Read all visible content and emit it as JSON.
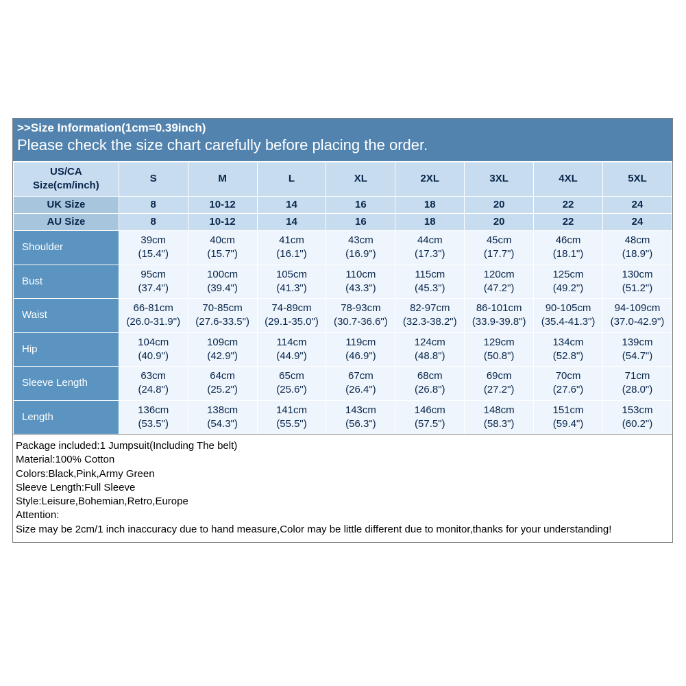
{
  "header": {
    "line1": ">>Size Information(1cm=0.39inch)",
    "line2": "Please check the size chart carefully before placing the order."
  },
  "columns": {
    "first_header_top": "US/CA",
    "first_header_bottom": "Size(cm/inch)",
    "sizes": [
      "S",
      "M",
      "L",
      "XL",
      "2XL",
      "3XL",
      "4XL",
      "5XL"
    ]
  },
  "uk": {
    "label": "UK Size",
    "vals": [
      "8",
      "10-12",
      "14",
      "16",
      "18",
      "20",
      "22",
      "24"
    ]
  },
  "au": {
    "label": "AU Size",
    "vals": [
      "8",
      "10-12",
      "14",
      "16",
      "18",
      "20",
      "22",
      "24"
    ]
  },
  "measures": [
    {
      "label": "Shoulder",
      "cm": [
        "39cm",
        "40cm",
        "41cm",
        "43cm",
        "44cm",
        "45cm",
        "46cm",
        "48cm"
      ],
      "in": [
        "(15.4\")",
        "(15.7\")",
        "(16.1\")",
        "(16.9\")",
        "(17.3\")",
        "(17.7\")",
        "(18.1\")",
        "(18.9\")"
      ]
    },
    {
      "label": "Bust",
      "cm": [
        "95cm",
        "100cm",
        "105cm",
        "110cm",
        "115cm",
        "120cm",
        "125cm",
        "130cm"
      ],
      "in": [
        "(37.4\")",
        "(39.4\")",
        "(41.3\")",
        "(43.3\")",
        "(45.3\")",
        "(47.2\")",
        "(49.2\")",
        "(51.2\")"
      ]
    },
    {
      "label": "Waist",
      "cm": [
        "66-81cm",
        "70-85cm",
        "74-89cm",
        "78-93cm",
        "82-97cm",
        "86-101cm",
        "90-105cm",
        "94-109cm"
      ],
      "in": [
        "(26.0-31.9\")",
        "(27.6-33.5\")",
        "(29.1-35.0\")",
        "(30.7-36.6\")",
        "(32.3-38.2\")",
        "(33.9-39.8\")",
        "(35.4-41.3\")",
        "(37.0-42.9\")"
      ]
    },
    {
      "label": "Hip",
      "cm": [
        "104cm",
        "109cm",
        "114cm",
        "119cm",
        "124cm",
        "129cm",
        "134cm",
        "139cm"
      ],
      "in": [
        "(40.9\")",
        "(42.9\")",
        "(44.9\")",
        "(46.9\")",
        "(48.8\")",
        "(50.8\")",
        "(52.8\")",
        "(54.7\")"
      ]
    },
    {
      "label": "Sleeve Length",
      "cm": [
        "63cm",
        "64cm",
        "65cm",
        "67cm",
        "68cm",
        "69cm",
        "70cm",
        "71cm"
      ],
      "in": [
        "(24.8\")",
        "(25.2\")",
        "(25.6\")",
        "(26.4\")",
        "(26.8\")",
        "(27.2\")",
        "(27.6\")",
        "(28.0\")"
      ]
    },
    {
      "label": "Length",
      "cm": [
        "136cm",
        "138cm",
        "141cm",
        "143cm",
        "146cm",
        "148cm",
        "151cm",
        "153cm"
      ],
      "in": [
        "(53.5\")",
        "(54.3\")",
        "(55.5\")",
        "(56.3\")",
        "(57.5\")",
        "(58.3\")",
        "(59.4\")",
        "(60.2\")"
      ]
    }
  ],
  "notes": [
    "Package included:1 Jumpsuit(Including The belt)",
    "Material:100% Cotton",
    "Colors:Black,Pink,Army Green",
    "Sleeve Length:Full Sleeve",
    "Style:Leisure,Bohemian,Retro,Europe",
    "Attention:",
    "Size may be 2cm/1 inch inaccuracy due to hand measure,Color may be little different due to monitor,thanks for your understanding!"
  ],
  "style": {
    "header_bg": "#5283ae",
    "head_cell_bg": "#c7dcef",
    "head_first_bg": "#a7c6de",
    "row_first_bg": "#5b94c0",
    "row_cell_bg": "#eef5fc",
    "border": "#ffffff",
    "text_dark": "#08254a"
  }
}
